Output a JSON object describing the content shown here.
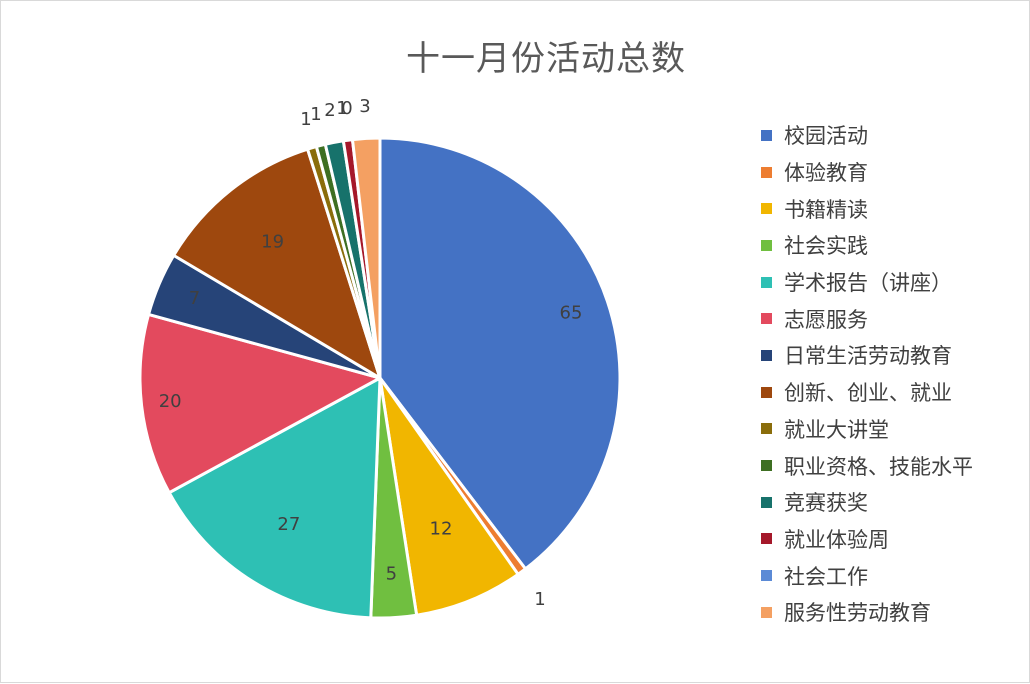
{
  "chart_data": {
    "type": "pie",
    "title": "十一月份活动总数",
    "legend_position": "right",
    "slices": [
      {
        "name": "校园活动",
        "value": 65,
        "color": "#4472C4"
      },
      {
        "name": "体验教育",
        "value": 1,
        "color": "#ED7D31"
      },
      {
        "name": "书籍精读",
        "value": 12,
        "color": "#F1B600"
      },
      {
        "name": "社会实践",
        "value": 5,
        "color": "#70BF40"
      },
      {
        "name": "学术报告（讲座）",
        "value": 27,
        "color": "#2EC0B4"
      },
      {
        "name": "志愿服务",
        "value": 20,
        "color": "#E34A5E"
      },
      {
        "name": "日常生活劳动教育",
        "value": 7,
        "color": "#264478"
      },
      {
        "name": "创新、创业、就业",
        "value": 19,
        "color": "#9E480E"
      },
      {
        "name": "就业大讲堂",
        "value": 1,
        "color": "#8A6D0B"
      },
      {
        "name": "职业资格、技能水平",
        "value": 1,
        "color": "#3E6F22"
      },
      {
        "name": "竞赛获奖",
        "value": 2,
        "color": "#17726B"
      },
      {
        "name": "就业体验周",
        "value": 1,
        "color": "#A5182A"
      },
      {
        "name": "社会工作",
        "value": 0,
        "color": "#5B8AD6"
      },
      {
        "name": "服务性劳动教育",
        "value": 3,
        "color": "#F4A062"
      }
    ]
  }
}
